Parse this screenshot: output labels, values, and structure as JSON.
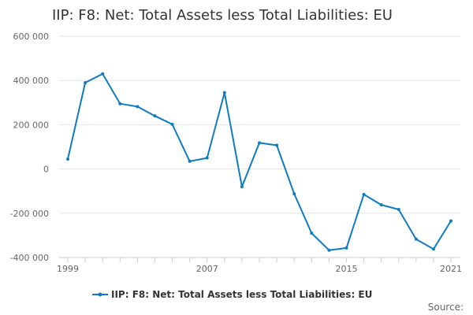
{
  "chart_data": {
    "type": "line",
    "title": "IIP: F8: Net: Total Assets less Total Liabilities: EU",
    "xlabel": "",
    "ylabel": "",
    "x": [
      1999,
      2000,
      2001,
      2002,
      2003,
      2004,
      2005,
      2006,
      2007,
      2008,
      2009,
      2010,
      2011,
      2012,
      2013,
      2014,
      2015,
      2016,
      2017,
      2018,
      2019,
      2020,
      2021
    ],
    "series": [
      {
        "name": "IIP: F8: Net: Total Assets less Total Liabilities: EU",
        "color": "#0f7cc2",
        "values": [
          45000,
          390000,
          430000,
          295000,
          282000,
          240000,
          202000,
          35000,
          50000,
          345000,
          -80000,
          118000,
          107000,
          -112000,
          -290000,
          -367000,
          -357000,
          -115000,
          -162000,
          -183000,
          -317000,
          -362000,
          -235000
        ]
      }
    ],
    "xticks": [
      "1999",
      "2007",
      "2015",
      "2021"
    ],
    "yticks": [
      "600 000",
      "400 000",
      "200 000",
      "0",
      "-200 000",
      "-400 000"
    ],
    "ylim": [
      -400000,
      600000
    ],
    "xlim": [
      1999,
      2021
    ],
    "grid": true,
    "legend_position": "bottom",
    "source_label": "Source:"
  }
}
